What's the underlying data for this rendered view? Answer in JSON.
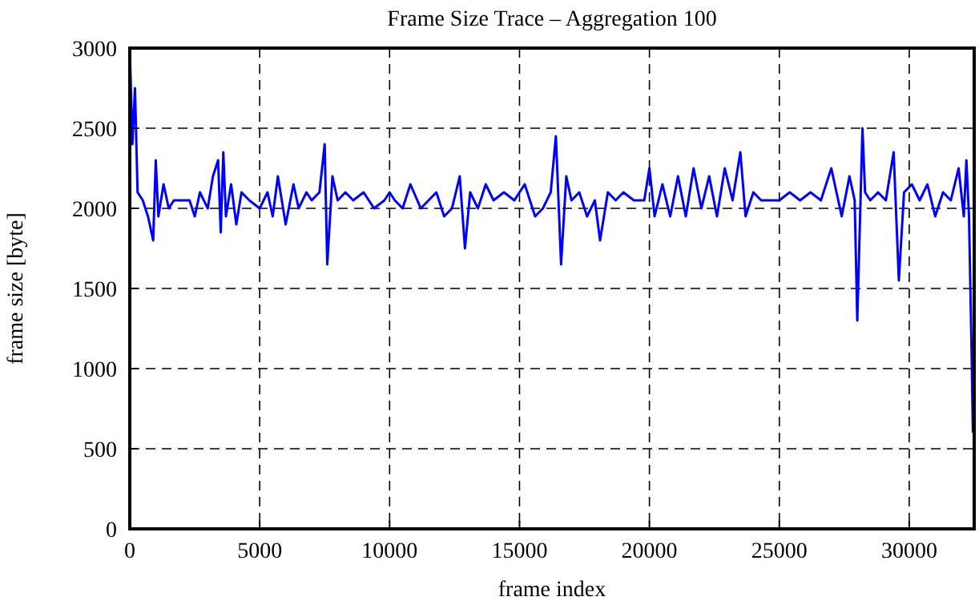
{
  "chart_data": {
    "type": "line",
    "title": "Frame Size Trace – Aggregation 100",
    "xlabel": "frame index",
    "ylabel": "frame size [byte]",
    "x": [
      0,
      100,
      200,
      300,
      500,
      700,
      900,
      1000,
      1100,
      1300,
      1500,
      1700,
      2000,
      2300,
      2500,
      2700,
      3000,
      3200,
      3400,
      3500,
      3600,
      3700,
      3900,
      4100,
      4300,
      4600,
      5000,
      5300,
      5500,
      5700,
      6000,
      6300,
      6500,
      6800,
      7000,
      7300,
      7500,
      7600,
      7800,
      8000,
      8300,
      8600,
      9000,
      9400,
      9800,
      10000,
      10200,
      10500,
      10800,
      11200,
      11500,
      11800,
      12100,
      12400,
      12700,
      12900,
      13100,
      13400,
      13700,
      14000,
      14400,
      14800,
      15200,
      15600,
      15900,
      16200,
      16400,
      16600,
      16800,
      17000,
      17300,
      17600,
      17900,
      18100,
      18400,
      18700,
      19000,
      19400,
      19800,
      20000,
      20200,
      20500,
      20800,
      21100,
      21400,
      21700,
      22000,
      22300,
      22600,
      22900,
      23200,
      23500,
      23700,
      24000,
      24300,
      24600,
      25000,
      25400,
      25800,
      26200,
      26600,
      27000,
      27400,
      27700,
      27900,
      28000,
      28200,
      28300,
      28500,
      28800,
      29100,
      29400,
      29600,
      29800,
      30100,
      30400,
      30700,
      31000,
      31300,
      31600,
      31900,
      32100,
      32200,
      32300,
      32400,
      32450
    ],
    "series": [
      {
        "color": "#0000ff",
        "values": [
          3000,
          2400,
          2750,
          2100,
          2050,
          1950,
          1800,
          2300,
          1950,
          2150,
          2000,
          2050,
          2050,
          2050,
          1950,
          2100,
          2000,
          2200,
          2300,
          1850,
          2350,
          1950,
          2150,
          1900,
          2100,
          2050,
          2000,
          2100,
          1950,
          2200,
          1900,
          2150,
          2000,
          2100,
          2050,
          2100,
          2400,
          1650,
          2200,
          2050,
          2100,
          2050,
          2100,
          2000,
          2050,
          2100,
          2050,
          2000,
          2150,
          2000,
          2050,
          2100,
          1950,
          2000,
          2200,
          1750,
          2100,
          2000,
          2150,
          2050,
          2100,
          2050,
          2150,
          1950,
          2000,
          2100,
          2450,
          1650,
          2200,
          2050,
          2100,
          1950,
          2050,
          1800,
          2100,
          2050,
          2100,
          2050,
          2050,
          2250,
          1950,
          2150,
          1950,
          2200,
          1950,
          2250,
          2000,
          2200,
          1950,
          2250,
          2050,
          2350,
          1950,
          2100,
          2050,
          2050,
          2050,
          2100,
          2050,
          2100,
          2050,
          2250,
          1950,
          2200,
          2050,
          1300,
          2500,
          2100,
          2050,
          2100,
          2050,
          2350,
          1550,
          2100,
          2150,
          2050,
          2150,
          1950,
          2100,
          2050,
          2250,
          1950,
          2300,
          1950,
          1100,
          600
        ]
      }
    ],
    "xlim": [
      0,
      32500
    ],
    "xticks": [
      0,
      5000,
      10000,
      15000,
      20000,
      25000,
      30000
    ],
    "ylim": [
      0,
      3000
    ],
    "yticks": [
      0,
      500,
      1000,
      1500,
      2000,
      2500,
      3000
    ],
    "grid": true,
    "line_style": "solid"
  }
}
